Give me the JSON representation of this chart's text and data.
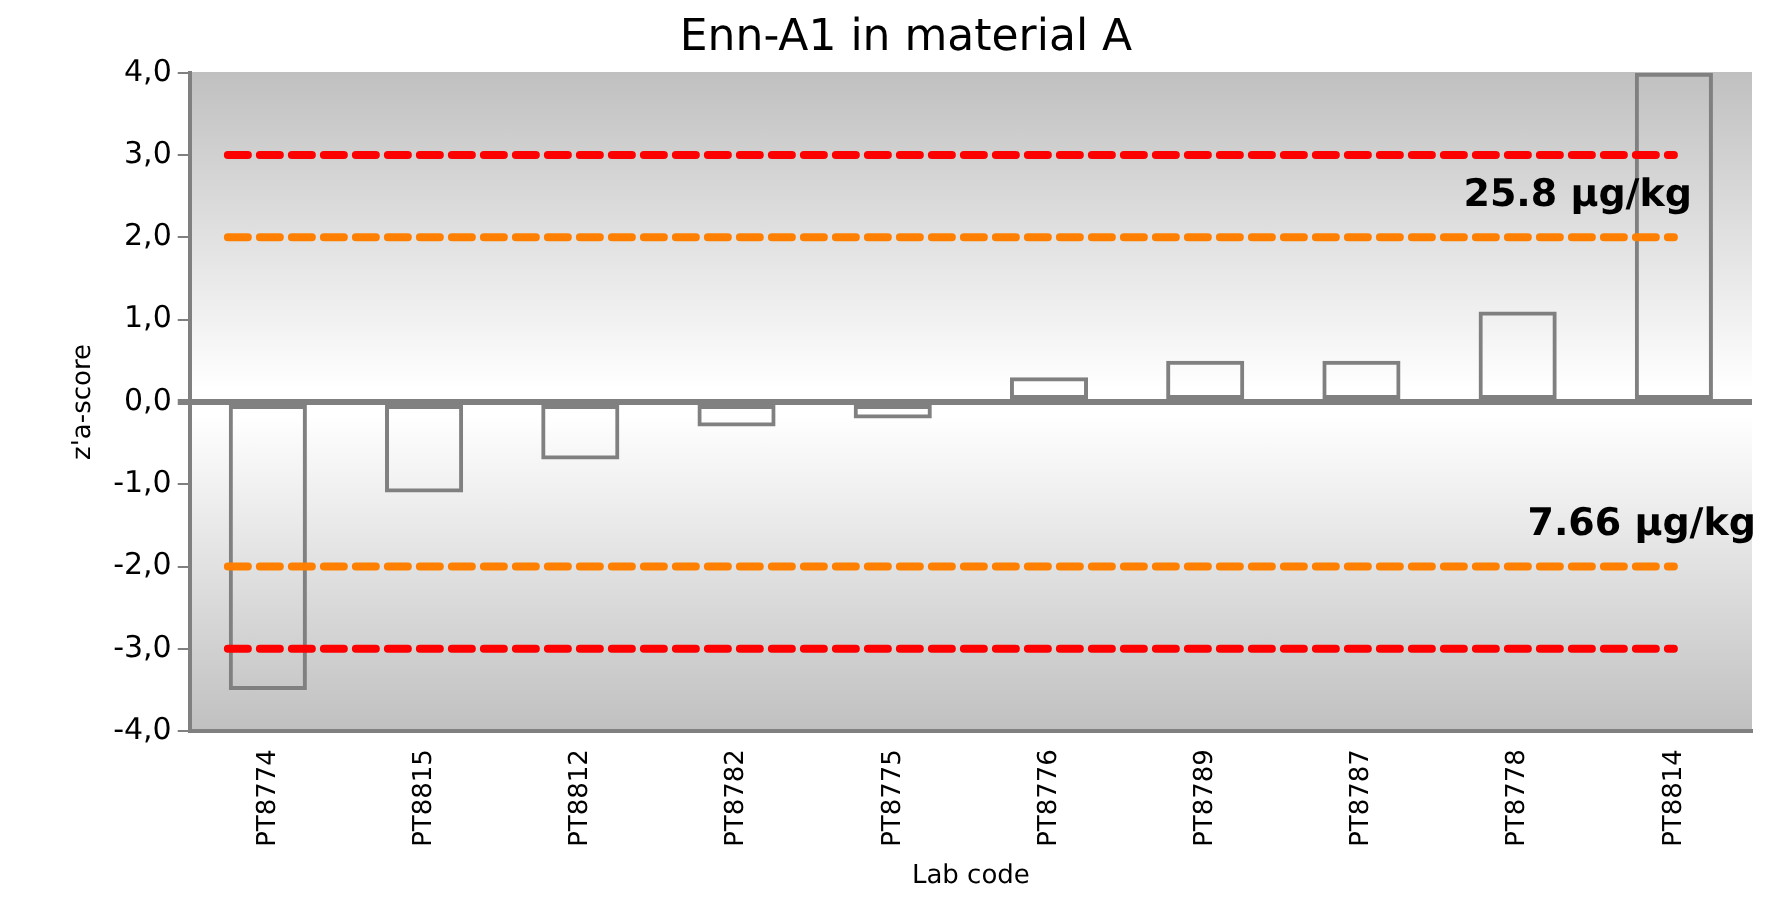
{
  "chart_data": {
    "type": "bar",
    "title": "Enn-A1 in material A",
    "xlabel": "Lab code",
    "ylabel": "z'a-score",
    "categories": [
      "PT8774",
      "PT8815",
      "PT8812",
      "PT8782",
      "PT8775",
      "PT8776",
      "PT8789",
      "PT8787",
      "PT8778",
      "PT8814"
    ],
    "values": [
      -3.5,
      -1.1,
      -0.7,
      -0.3,
      -0.2,
      0.3,
      0.5,
      0.5,
      1.1,
      4.0
    ],
    "color": "#808080",
    "ylim": [
      -4,
      4
    ],
    "yticks": [
      {
        "value": -4,
        "label": "-4,0"
      },
      {
        "value": -3,
        "label": "-3,0"
      },
      {
        "value": -2,
        "label": "-2,0"
      },
      {
        "value": -1,
        "label": "-1,0"
      },
      {
        "value": 0,
        "label": "0,0"
      },
      {
        "value": 1,
        "label": "1,0"
      },
      {
        "value": 2,
        "label": "2,0"
      },
      {
        "value": 3,
        "label": "3,0"
      },
      {
        "value": 4,
        "label": "4,0"
      }
    ],
    "ref_lines": [
      {
        "axis": "y",
        "value": 3,
        "color": "#ff0000",
        "line_style": "dashed"
      },
      {
        "axis": "y",
        "value": 2,
        "color": "#ff8000",
        "line_style": "dashed"
      },
      {
        "axis": "y",
        "value": -2,
        "color": "#ff8000",
        "line_style": "dashed"
      },
      {
        "axis": "y",
        "value": -3,
        "color": "#ff0000",
        "line_style": "dashed"
      }
    ],
    "annotations": [
      "25.8 µg/kg",
      "7.66 µg/kg"
    ],
    "grid": false,
    "legend": false
  }
}
